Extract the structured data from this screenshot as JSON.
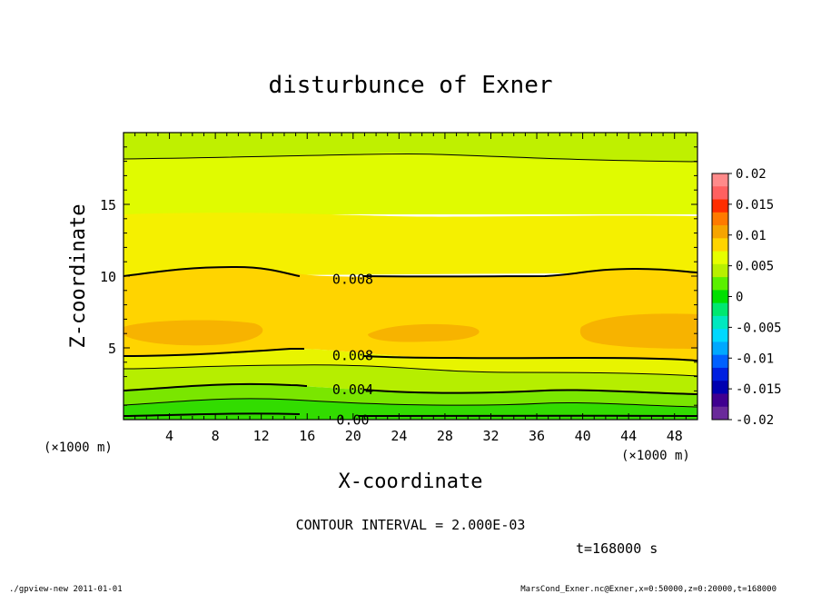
{
  "chart_data": {
    "type": "contour",
    "title": "disturbunce of Exner",
    "xlabel": "X-coordinate",
    "ylabel": "Z-coordinate",
    "x_unit_left": "(×1000 m)",
    "x_unit_right": "(×1000 m)",
    "xlim": [
      0,
      50
    ],
    "ylim": [
      0,
      20
    ],
    "xticks": [
      4,
      8,
      12,
      16,
      20,
      24,
      28,
      32,
      36,
      40,
      44,
      48
    ],
    "yticks": [
      5,
      10,
      15
    ],
    "colorbar": {
      "ticks": [
        "0.02",
        "0.015",
        "0.01",
        "0.005",
        "0",
        "-0.005",
        "-0.01",
        "-0.015",
        "-0.02"
      ],
      "values": [
        0.02,
        0.015,
        0.01,
        0.005,
        0,
        -0.005,
        -0.01,
        -0.015,
        -0.02
      ],
      "colors": [
        "#ff8a8a",
        "#ff6060",
        "#ff2d00",
        "#ff7a00",
        "#f6a400",
        "#ffd400",
        "#e6ff00",
        "#b8f000",
        "#5af000",
        "#00e000",
        "#00e870",
        "#00e8c0",
        "#00d8ff",
        "#00a8ff",
        "#0060ff",
        "#0020e0",
        "#0000b0",
        "#400090",
        "#6a2a9a"
      ]
    },
    "bands": [
      {
        "range": [
          0.0,
          0.002
        ],
        "color": "#32dc00"
      },
      {
        "range": [
          0.002,
          0.004
        ],
        "color": "#7ae600"
      },
      {
        "range": [
          0.004,
          0.006
        ],
        "color": "#b6ee00"
      },
      {
        "range": [
          0.006,
          0.008
        ],
        "color": "#e8f400"
      },
      {
        "range": [
          0.008,
          0.01
        ],
        "color": "#ffd400"
      },
      {
        "range": [
          0.01,
          0.012
        ],
        "color": "#f7b300"
      }
    ],
    "contour_labels": [
      {
        "text": "0.008",
        "x": 17.6,
        "z": 9.9
      },
      {
        "text": "0.008",
        "x": 17.6,
        "z": 4.6
      },
      {
        "text": "0.004",
        "x": 17.6,
        "z": 2.2
      },
      {
        "text": "0.00",
        "x": 17.6,
        "z": 0.1
      }
    ],
    "contour_interval_text": "CONTOUR INTERVAL = 2.000E-03",
    "time_text": "t=168000 s"
  },
  "footer": {
    "left": "./gpview-new  2011-01-01",
    "right": "MarsCond_Exner.nc@Exner,x=0:50000,z=0:20000,t=168000"
  }
}
